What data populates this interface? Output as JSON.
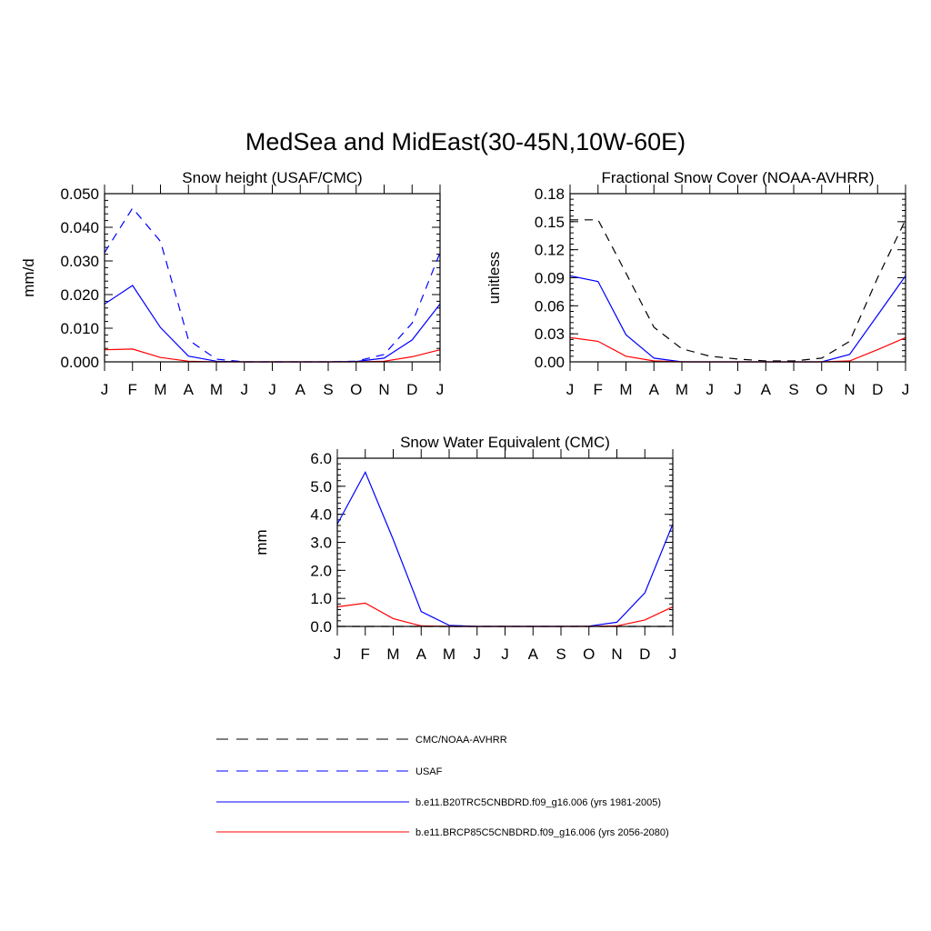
{
  "figure": {
    "title": "MedSea and MidEast(30-45N,10W-60E)"
  },
  "months": [
    "J",
    "F",
    "M",
    "A",
    "M",
    "J",
    "J",
    "A",
    "S",
    "O",
    "N",
    "D",
    "J"
  ],
  "colors": {
    "observed": "#000000",
    "usaf": "#0000ff",
    "historical": "#0000ff",
    "future": "#ff0000"
  },
  "legend": {
    "items": [
      {
        "key": "observed",
        "label": "CMC/NOAA-AVHRR",
        "style": "dashed"
      },
      {
        "key": "usaf",
        "label": "USAF",
        "style": "dashed"
      },
      {
        "key": "historical",
        "label": "b.e11.B20TRC5CNBDRD.f09_g16.006 (yrs 1981-2005)",
        "style": "solid"
      },
      {
        "key": "future",
        "label": "b.e11.BRCP85C5CNBDRD.f09_g16.006 (yrs 2056-2080)",
        "style": "solid"
      }
    ]
  },
  "chart_data": [
    {
      "type": "line",
      "title": "Snow height (USAF/CMC)",
      "xlabel": "",
      "ylabel": "mm/d",
      "categories": [
        "J",
        "F",
        "M",
        "A",
        "M",
        "J",
        "J",
        "A",
        "S",
        "O",
        "N",
        "D",
        "J"
      ],
      "ylim": [
        0,
        0.05
      ],
      "yticks": [
        0.0,
        0.01,
        0.02,
        0.03,
        0.04,
        0.05
      ],
      "ytick_labels": [
        "0.000",
        "0.010",
        "0.020",
        "0.030",
        "0.040",
        "0.050"
      ],
      "yminor": 0.002,
      "grid": false,
      "series": [
        {
          "key": "usaf",
          "style": "dashed",
          "values": [
            0.0325,
            0.0457,
            0.0358,
            0.0065,
            0.0008,
            0.0,
            0.0,
            0.0,
            0.0,
            0.0002,
            0.0022,
            0.0115,
            0.0325
          ]
        },
        {
          "key": "historical",
          "style": "solid",
          "values": [
            0.0172,
            0.0227,
            0.0102,
            0.0017,
            0.0002,
            0.0,
            0.0,
            0.0,
            0.0,
            0.0001,
            0.0011,
            0.0065,
            0.0172
          ]
        },
        {
          "key": "future",
          "style": "solid",
          "values": [
            0.0036,
            0.0038,
            0.0013,
            0.0002,
            0.0,
            0.0,
            0.0,
            0.0,
            0.0,
            0.0,
            0.0002,
            0.0015,
            0.0036
          ]
        }
      ]
    },
    {
      "type": "line",
      "title": "Fractional Snow Cover (NOAA-AVHRR)",
      "xlabel": "",
      "ylabel": "unitless",
      "categories": [
        "J",
        "F",
        "M",
        "A",
        "M",
        "J",
        "J",
        "A",
        "S",
        "O",
        "N",
        "D",
        "J"
      ],
      "ylim": [
        0,
        0.18
      ],
      "yticks": [
        0.0,
        0.03,
        0.06,
        0.09,
        0.12,
        0.15,
        0.18
      ],
      "ytick_labels": [
        "0.00",
        "0.03",
        "0.06",
        "0.09",
        "0.12",
        "0.15",
        "0.18"
      ],
      "yminor": 0.006,
      "grid": false,
      "series": [
        {
          "key": "observed",
          "style": "dashed",
          "values": [
            0.152,
            0.152,
            0.095,
            0.037,
            0.014,
            0.006,
            0.003,
            0.001,
            0.001,
            0.004,
            0.022,
            0.09,
            0.152
          ]
        },
        {
          "key": "historical",
          "style": "solid",
          "values": [
            0.092,
            0.086,
            0.029,
            0.004,
            0.0,
            0.0,
            0.0,
            0.0,
            0.0,
            0.0,
            0.008,
            0.05,
            0.092
          ]
        },
        {
          "key": "future",
          "style": "solid",
          "values": [
            0.026,
            0.022,
            0.006,
            0.001,
            0.0,
            0.0,
            0.0,
            0.0,
            0.0,
            0.0,
            0.001,
            0.013,
            0.026
          ]
        }
      ]
    },
    {
      "type": "line",
      "title": "Snow Water Equivalent (CMC)",
      "xlabel": "",
      "ylabel": "mm",
      "categories": [
        "J",
        "F",
        "M",
        "A",
        "M",
        "J",
        "J",
        "A",
        "S",
        "O",
        "N",
        "D",
        "J"
      ],
      "ylim": [
        0,
        6.0
      ],
      "yticks": [
        0.0,
        1.0,
        2.0,
        3.0,
        4.0,
        5.0,
        6.0
      ],
      "ytick_labels": [
        "0.0",
        "1.0",
        "2.0",
        "3.0",
        "4.0",
        "5.0",
        "6.0"
      ],
      "yminor": 0.2,
      "grid": false,
      "series": [
        {
          "key": "observed",
          "style": "dashed",
          "values": [
            0,
            0,
            0,
            0,
            0,
            0,
            0,
            0,
            0,
            0,
            0,
            0,
            0
          ]
        },
        {
          "key": "historical",
          "style": "solid",
          "values": [
            3.65,
            5.5,
            3.1,
            0.53,
            0.04,
            0.0,
            0.0,
            0.0,
            0.0,
            0.01,
            0.15,
            1.2,
            3.65
          ]
        },
        {
          "key": "future",
          "style": "solid",
          "values": [
            0.7,
            0.83,
            0.28,
            0.02,
            0.0,
            0.0,
            0.0,
            0.0,
            0.0,
            0.0,
            0.02,
            0.23,
            0.7
          ]
        }
      ]
    }
  ]
}
